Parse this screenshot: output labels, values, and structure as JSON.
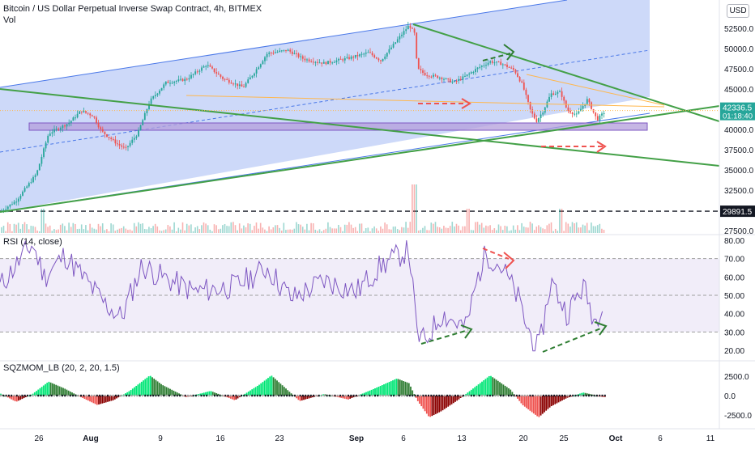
{
  "header": {
    "title": "Bitcoin / US Dollar Perpetual Inverse Swap Contract, 4h, BITMEX",
    "volume_label": "Vol",
    "currency_button": "USD"
  },
  "rsi_panel": {
    "title": "RSI (14, close)"
  },
  "sqz_panel": {
    "title": "SQZMOM_LB (20, 2, 20, 1.5)"
  },
  "badges": {
    "last_price": "42336.5",
    "countdown": "01:18:40",
    "support_level": "29891.5"
  },
  "colors": {
    "up": "#26a69a",
    "down": "#ef5350",
    "channel": "#4a78e8",
    "trendline": "#43a047",
    "rsi_line": "#7e57c2",
    "zone": "#b39ddb",
    "annotation_red": "#ef5350",
    "annotation_green": "#2e7d32",
    "price_line": "#ffb74d"
  },
  "chart_data": [
    {
      "type": "candlestick",
      "name": "price",
      "y_axis_ticks": [
        "52500.0",
        "50000.0",
        "47500.0",
        "45000.0",
        "42500.0",
        "40000.0",
        "37500.0",
        "35000.0",
        "32500.0",
        "30000.0",
        "27500.0"
      ],
      "x_axis_ticks": [
        "26",
        "Aug",
        "9",
        "16",
        "23",
        "Sep",
        "6",
        "13",
        "20",
        "25",
        "Oct",
        "6",
        "11"
      ],
      "ylim": [
        26500,
        55000
      ],
      "key_points": {
        "start_low": 29800,
        "aug_high": 42500,
        "aug_dip": 37600,
        "sep7_high": 52900,
        "sep7_drop": 43000,
        "sep21_low": 40500,
        "last": 42336.5
      },
      "horizontal_levels": [
        29891.5,
        40500
      ]
    },
    {
      "type": "line",
      "name": "RSI",
      "y_axis_ticks": [
        "80.00",
        "70.00",
        "60.00",
        "50.00",
        "40.00",
        "30.00",
        "20.00"
      ],
      "ylim": [
        17,
        82
      ],
      "bands": [
        30,
        50,
        70
      ]
    },
    {
      "type": "bar",
      "name": "SQZMOM_LB",
      "y_axis_ticks": [
        "2500.0",
        "0.0",
        "-2500.0"
      ],
      "ylim": [
        -3600,
        3600
      ]
    }
  ]
}
